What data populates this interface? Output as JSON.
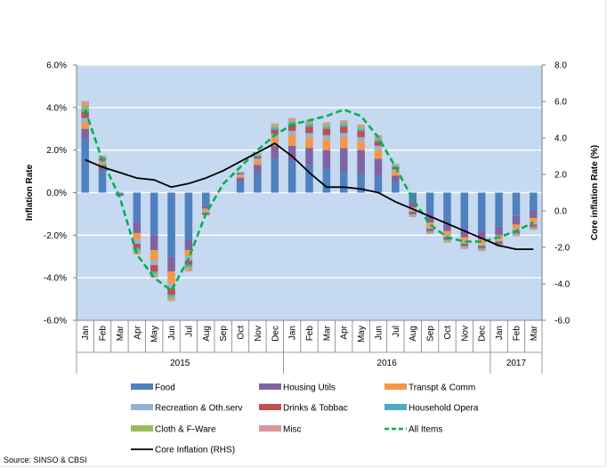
{
  "chart_data": {
    "type": "bar",
    "stacked": true,
    "categories": [
      "Jan",
      "Feb",
      "Mar",
      "Apr",
      "May",
      "Jun",
      "Jul",
      "Aug",
      "Sep",
      "Oct",
      "Nov",
      "Dec",
      "Jan",
      "Feb",
      "Mar",
      "Apr",
      "May",
      "Jun",
      "Jul",
      "Aug",
      "Sep",
      "Oct",
      "Nov",
      "Dec",
      "Jan",
      "Feb",
      "Mar"
    ],
    "year_groups": [
      {
        "label": "2015",
        "count": 12
      },
      {
        "label": "2016",
        "count": 12
      },
      {
        "label": "2017",
        "count": 3
      }
    ],
    "ylabel": "Inflation Rate",
    "y2label": "Core inflation Rate (%)",
    "ylim": [
      -6,
      6
    ],
    "y2lim": [
      -6,
      8
    ],
    "yticks": [
      "6.0%",
      "4.0%",
      "2.0%",
      "0.0%",
      "-2.0%",
      "-4.0%",
      "-6.0%"
    ],
    "y2ticks": [
      "8.0",
      "6.0",
      "4.0",
      "2.0",
      "0.0",
      "-2.0",
      "-4.0",
      "-6.0"
    ],
    "plot_background": "#c5d9f1",
    "grid": true,
    "legend_position": "bottom",
    "series": [
      {
        "name": "Food",
        "kind": "bar",
        "color": "#4f81bd",
        "values": [
          2.5,
          1.0,
          -0.1,
          -1.4,
          -2.0,
          -3.0,
          -2.2,
          -0.6,
          0.0,
          0.5,
          0.9,
          1.6,
          1.5,
          1.3,
          1.1,
          1.0,
          0.9,
          0.8,
          0.5,
          -0.4,
          -1.0,
          -1.4,
          -1.7,
          -1.8,
          -1.6,
          -1.1,
          -0.8
        ]
      },
      {
        "name": "Housing Utils",
        "kind": "bar",
        "color": "#8064a2",
        "values": [
          0.5,
          0.3,
          -0.05,
          -0.5,
          -0.7,
          -0.7,
          -0.5,
          -0.15,
          0.0,
          0.2,
          0.4,
          0.6,
          0.7,
          0.8,
          0.9,
          1.1,
          1.1,
          0.8,
          0.3,
          -0.3,
          -0.4,
          -0.4,
          -0.4,
          -0.4,
          -0.4,
          -0.4,
          -0.4
        ]
      },
      {
        "name": "Transpt & Comm",
        "kind": "bar",
        "color": "#f79646",
        "values": [
          0.3,
          0.1,
          0.0,
          -0.3,
          -0.5,
          -0.6,
          -0.3,
          -0.1,
          0.0,
          0.1,
          0.2,
          0.4,
          0.5,
          0.5,
          0.5,
          0.5,
          0.4,
          0.4,
          0.2,
          -0.1,
          -0.2,
          -0.2,
          -0.2,
          -0.2,
          -0.2,
          -0.2,
          -0.2
        ]
      },
      {
        "name": "Recreation & Oth.serv",
        "kind": "bar",
        "color": "#95b3d7",
        "values": [
          0.2,
          0.1,
          0.0,
          -0.2,
          -0.2,
          -0.2,
          -0.2,
          -0.1,
          0.0,
          0.05,
          0.1,
          0.15,
          0.2,
          0.2,
          0.2,
          0.2,
          0.2,
          0.2,
          0.1,
          -0.1,
          -0.1,
          -0.1,
          -0.1,
          -0.1,
          -0.1,
          -0.1,
          -0.1
        ]
      },
      {
        "name": "Drinks & Tobbac",
        "kind": "bar",
        "color": "#c0504d",
        "values": [
          0.3,
          0.1,
          0.0,
          -0.2,
          -0.3,
          -0.3,
          -0.2,
          -0.1,
          0.0,
          0.05,
          0.1,
          0.2,
          0.3,
          0.3,
          0.3,
          0.3,
          0.3,
          0.2,
          0.1,
          -0.1,
          -0.1,
          -0.1,
          -0.1,
          -0.1,
          -0.1,
          -0.1,
          -0.1
        ]
      },
      {
        "name": "Household Opera",
        "kind": "bar",
        "color": "#4bacc6",
        "values": [
          0.1,
          0.05,
          0.0,
          -0.1,
          -0.1,
          -0.1,
          -0.1,
          0.0,
          0.0,
          0.03,
          0.05,
          0.1,
          0.1,
          0.1,
          0.1,
          0.1,
          0.1,
          0.1,
          0.05,
          -0.05,
          -0.05,
          -0.05,
          -0.05,
          -0.05,
          -0.05,
          -0.05,
          -0.05
        ]
      },
      {
        "name": "Cloth & F-Ware",
        "kind": "bar",
        "color": "#9bbb59",
        "values": [
          0.2,
          0.05,
          0.0,
          -0.1,
          -0.1,
          -0.1,
          -0.1,
          0.0,
          0.0,
          0.03,
          0.05,
          0.1,
          0.1,
          0.1,
          0.1,
          0.1,
          0.1,
          0.1,
          0.05,
          -0.05,
          -0.05,
          -0.05,
          -0.05,
          -0.05,
          -0.05,
          -0.05,
          -0.05
        ]
      },
      {
        "name": "Misc",
        "kind": "bar",
        "color": "#d99694",
        "values": [
          0.2,
          0.05,
          0.0,
          -0.1,
          -0.1,
          -0.1,
          -0.1,
          0.0,
          0.0,
          0.03,
          0.05,
          0.1,
          0.1,
          0.1,
          0.1,
          0.1,
          0.1,
          0.1,
          0.05,
          -0.05,
          -0.05,
          -0.05,
          -0.05,
          -0.05,
          -0.05,
          -0.05,
          -0.05
        ]
      },
      {
        "name": "All Items",
        "kind": "line",
        "axis": "left",
        "color": "#00b050",
        "dash": true,
        "values": [
          3.9,
          1.5,
          -0.2,
          -2.9,
          -4.0,
          -4.6,
          -3.1,
          -1.0,
          0.4,
          1.2,
          2.0,
          2.7,
          3.2,
          3.4,
          3.6,
          3.9,
          3.6,
          2.6,
          1.2,
          -0.3,
          -1.5,
          -2.1,
          -2.3,
          -2.3,
          -2.1,
          -1.8,
          -1.4
        ]
      },
      {
        "name": "Core Inflation (RHS)",
        "kind": "line",
        "axis": "right",
        "color": "#000000",
        "dash": false,
        "values": [
          2.8,
          2.4,
          2.1,
          1.8,
          1.7,
          1.3,
          1.5,
          1.8,
          2.2,
          2.7,
          3.2,
          3.7,
          3.0,
          2.1,
          1.3,
          1.3,
          1.2,
          1.0,
          0.5,
          0.1,
          -0.3,
          -0.7,
          -1.1,
          -1.5,
          -1.9,
          -2.1,
          -2.1
        ]
      }
    ],
    "legend": [
      {
        "label": "Food",
        "kind": "bar",
        "color": "#4f81bd"
      },
      {
        "label": "Housing Utils",
        "kind": "bar",
        "color": "#8064a2"
      },
      {
        "label": "Transpt & Comm",
        "kind": "bar",
        "color": "#f79646"
      },
      {
        "label": "Recreation & Oth.serv",
        "kind": "bar",
        "color": "#95b3d7"
      },
      {
        "label": "Drinks & Tobbac",
        "kind": "bar",
        "color": "#c0504d"
      },
      {
        "label": "Household Opera",
        "kind": "bar",
        "color": "#4bacc6"
      },
      {
        "label": "Cloth & F-Ware",
        "kind": "bar",
        "color": "#9bbb59"
      },
      {
        "label": "Misc",
        "kind": "bar",
        "color": "#d99694"
      },
      {
        "label": "All Items",
        "kind": "dash",
        "color": "#00b050"
      },
      {
        "label": "Core Inflation (RHS)",
        "kind": "line",
        "color": "#000000"
      }
    ],
    "source": "Source: SINSO & CBSI"
  }
}
